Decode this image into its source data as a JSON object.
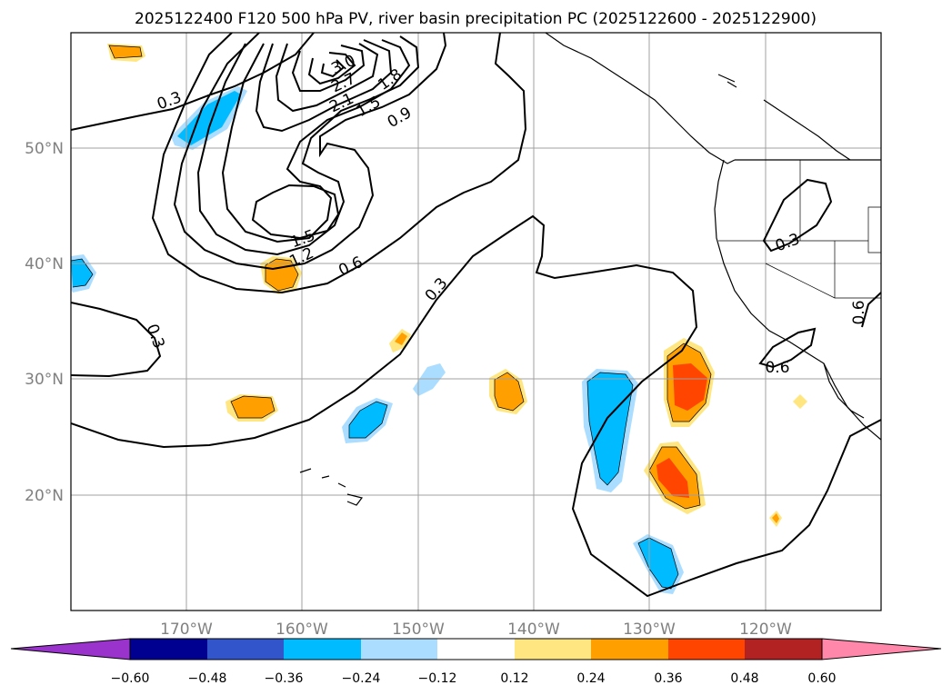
{
  "title": "2025122400 F120 500 hPa PV, river basin precipitation PC (2025122600 - 2025122900)",
  "colors": {
    "grid": "#a0a0a0",
    "axis_label": "#808080",
    "coast": "#000000",
    "contour": "#000000"
  },
  "lat_labels": [
    "50°N",
    "40°N",
    "30°N",
    "20°N"
  ],
  "lon_labels": [
    "170°W",
    "160°W",
    "150°W",
    "140°W",
    "130°W",
    "120°W"
  ],
  "contour_labels": [
    "0.3",
    "3.0",
    "2.7",
    "2.1",
    "1.8",
    "1.5",
    "0.9",
    "1.5",
    "1.2",
    "0.6",
    "0.3",
    "0.3",
    "0.3",
    "0.6",
    "0.6"
  ],
  "colorbar": {
    "under_color": "#9933cc",
    "over_color": "#ff88aa",
    "segments": [
      "#000090",
      "#3355cc",
      "#00bbff",
      "#aaddff",
      "#ffffff",
      "#ffe680",
      "#ff9f00",
      "#ff4500",
      "#b22222"
    ],
    "ticks": [
      "−0.60",
      "−0.48",
      "−0.36",
      "−0.24",
      "−0.12",
      "0.12",
      "0.24",
      "0.36",
      "0.48",
      "0.60"
    ]
  }
}
